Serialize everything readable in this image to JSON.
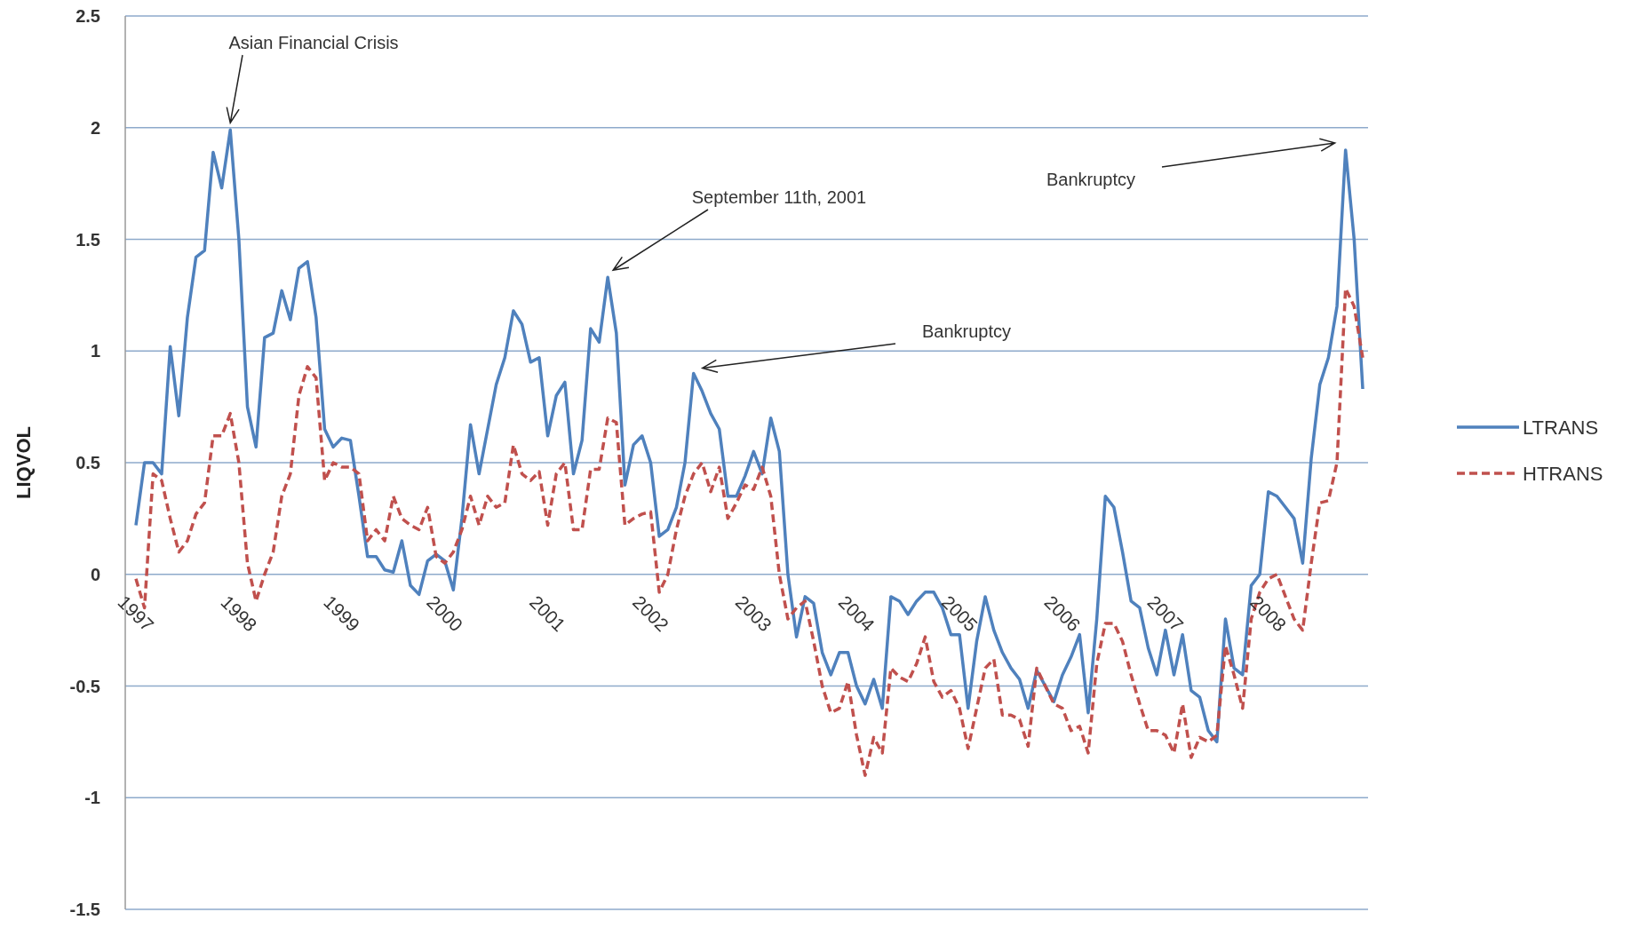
{
  "chart_data": {
    "type": "line",
    "ylabel": "LIQVOL",
    "categories": [
      "1997",
      null,
      null,
      null,
      null,
      null,
      null,
      null,
      null,
      null,
      null,
      null,
      "1998",
      null,
      null,
      null,
      null,
      null,
      null,
      null,
      null,
      null,
      null,
      null,
      "1999",
      null,
      null,
      null,
      null,
      null,
      null,
      null,
      null,
      null,
      null,
      null,
      "2000",
      null,
      null,
      null,
      null,
      null,
      null,
      null,
      null,
      null,
      null,
      null,
      "2001",
      null,
      null,
      null,
      null,
      null,
      null,
      null,
      null,
      null,
      null,
      null,
      "2002",
      null,
      null,
      null,
      null,
      null,
      null,
      null,
      null,
      null,
      null,
      null,
      "2003",
      null,
      null,
      null,
      null,
      null,
      null,
      null,
      null,
      null,
      null,
      null,
      "2004",
      null,
      null,
      null,
      null,
      null,
      null,
      null,
      null,
      null,
      null,
      null,
      "2005",
      null,
      null,
      null,
      null,
      null,
      null,
      null,
      null,
      null,
      null,
      null,
      "2006",
      null,
      null,
      null,
      null,
      null,
      null,
      null,
      null,
      null,
      null,
      null,
      "2007",
      null,
      null,
      null,
      null,
      null,
      null,
      null,
      null,
      null,
      null,
      null,
      "2008",
      null,
      null,
      null,
      null,
      null,
      null,
      null,
      null,
      null,
      null,
      null
    ],
    "series": [
      {
        "name": "LTRANS",
        "color": "#4f81bd",
        "line_style": "solid",
        "values": [
          0.22,
          0.5,
          0.5,
          0.45,
          1.02,
          0.71,
          1.15,
          1.42,
          1.45,
          1.89,
          1.73,
          1.99,
          1.5,
          0.75,
          0.57,
          1.06,
          1.08,
          1.27,
          1.14,
          1.37,
          1.4,
          1.15,
          0.65,
          0.57,
          0.61,
          0.6,
          0.35,
          0.08,
          0.08,
          0.02,
          0.01,
          0.15,
          -0.05,
          -0.09,
          0.06,
          0.09,
          0.06,
          -0.07,
          0.25,
          0.67,
          0.45,
          0.65,
          0.85,
          0.97,
          1.18,
          1.12,
          0.95,
          0.97,
          0.62,
          0.8,
          0.86,
          0.45,
          0.6,
          1.1,
          1.04,
          1.33,
          1.08,
          0.4,
          0.58,
          0.62,
          0.5,
          0.17,
          0.2,
          0.3,
          0.5,
          0.9,
          0.82,
          0.72,
          0.65,
          0.35,
          0.35,
          0.44,
          0.55,
          0.45,
          0.7,
          0.55,
          0.0,
          -0.28,
          -0.1,
          -0.13,
          -0.35,
          -0.45,
          -0.35,
          -0.35,
          -0.5,
          -0.58,
          -0.47,
          -0.6,
          -0.1,
          -0.12,
          -0.18,
          -0.12,
          -0.08,
          -0.08,
          -0.15,
          -0.27,
          -0.27,
          -0.6,
          -0.3,
          -0.1,
          -0.25,
          -0.35,
          -0.42,
          -0.47,
          -0.6,
          -0.43,
          -0.5,
          -0.57,
          -0.45,
          -0.37,
          -0.27,
          -0.62,
          -0.2,
          0.35,
          0.3,
          0.1,
          -0.12,
          -0.15,
          -0.33,
          -0.45,
          -0.25,
          -0.45,
          -0.27,
          -0.52,
          -0.55,
          -0.7,
          -0.75,
          -0.2,
          -0.42,
          -0.45,
          -0.05,
          0.0,
          0.37,
          0.35,
          0.3,
          0.25,
          0.05,
          0.52,
          0.85,
          0.97,
          1.2,
          1.9,
          1.5,
          0.83
        ]
      },
      {
        "name": "HTRANS",
        "color": "#c0504d",
        "line_style": "dashed",
        "values": [
          -0.02,
          -0.15,
          0.45,
          0.42,
          0.25,
          0.1,
          0.15,
          0.27,
          0.32,
          0.62,
          0.62,
          0.72,
          0.5,
          0.05,
          -0.12,
          0.0,
          0.1,
          0.35,
          0.45,
          0.8,
          0.93,
          0.88,
          0.42,
          0.5,
          0.48,
          0.48,
          0.45,
          0.15,
          0.2,
          0.15,
          0.35,
          0.25,
          0.22,
          0.2,
          0.3,
          0.08,
          0.05,
          0.1,
          0.2,
          0.35,
          0.22,
          0.35,
          0.3,
          0.32,
          0.58,
          0.45,
          0.42,
          0.46,
          0.22,
          0.45,
          0.5,
          0.2,
          0.2,
          0.47,
          0.47,
          0.7,
          0.68,
          0.22,
          0.25,
          0.27,
          0.28,
          -0.08,
          0.0,
          0.2,
          0.35,
          0.45,
          0.5,
          0.37,
          0.48,
          0.25,
          0.32,
          0.4,
          0.38,
          0.48,
          0.35,
          0.0,
          -0.2,
          -0.15,
          -0.12,
          -0.3,
          -0.5,
          -0.62,
          -0.6,
          -0.48,
          -0.72,
          -0.9,
          -0.73,
          -0.8,
          -0.42,
          -0.46,
          -0.48,
          -0.4,
          -0.28,
          -0.48,
          -0.55,
          -0.52,
          -0.6,
          -0.78,
          -0.6,
          -0.42,
          -0.38,
          -0.63,
          -0.63,
          -0.65,
          -0.77,
          -0.42,
          -0.5,
          -0.58,
          -0.6,
          -0.7,
          -0.68,
          -0.8,
          -0.4,
          -0.22,
          -0.22,
          -0.3,
          -0.45,
          -0.58,
          -0.7,
          -0.7,
          -0.72,
          -0.8,
          -0.58,
          -0.82,
          -0.73,
          -0.75,
          -0.72,
          -0.32,
          -0.45,
          -0.6,
          -0.2,
          -0.08,
          -0.02,
          0.0,
          -0.1,
          -0.2,
          -0.25,
          0.05,
          0.32,
          0.33,
          0.5,
          1.28,
          1.2,
          0.97
        ]
      }
    ],
    "ylim": [
      -1.5,
      2.5
    ],
    "yticks": [
      -1.5,
      -1,
      -0.5,
      0,
      0.5,
      1,
      1.5,
      2,
      2.5
    ],
    "grid": "y",
    "legend": "right",
    "marker": "none",
    "annotations": [
      "Asian Financial Crisis",
      "September 11th, 2001",
      "Bankruptcy",
      "Bankruptcy"
    ]
  }
}
